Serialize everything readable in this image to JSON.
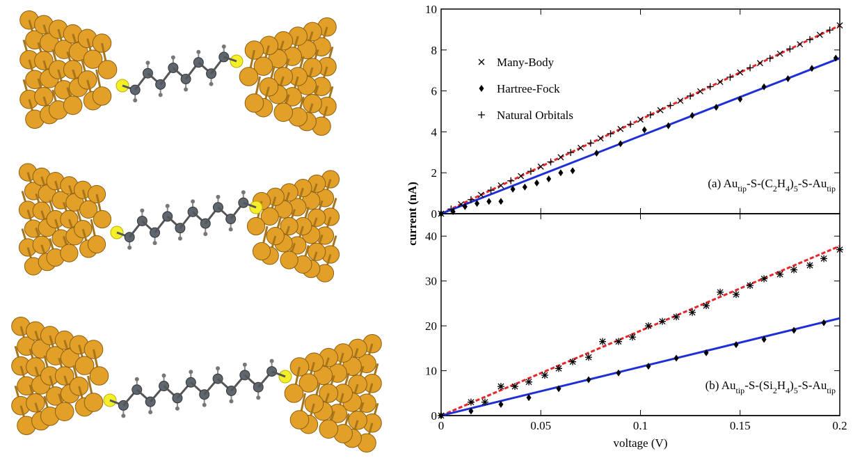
{
  "chart_data": [
    {
      "type": "scatter",
      "ylabel": "current (nA)",
      "xlim": [
        0,
        0.2
      ],
      "xticks": [
        0,
        0.05,
        0.1,
        0.15,
        0.2
      ],
      "ylim": [
        0,
        10
      ],
      "yticks": [
        0,
        2,
        4,
        6,
        8,
        10
      ],
      "legend": "upper left",
      "annotation": [
        {
          "text": "(a) Au",
          "sub": false
        },
        {
          "text": "tip",
          "sub": true
        },
        {
          "text": "-S-(C",
          "sub": false
        },
        {
          "text": "2",
          "sub": true
        },
        {
          "text": "H",
          "sub": false
        },
        {
          "text": "4",
          "sub": true
        },
        {
          "text": ")",
          "sub": false
        },
        {
          "text": "5",
          "sub": true
        },
        {
          "text": "-S-Au",
          "sub": false
        },
        {
          "text": "tip",
          "sub": true
        }
      ],
      "series": [
        {
          "name": "Many-Body",
          "marker": "x",
          "color": "#000000",
          "x": [
            0,
            0.01,
            0.02,
            0.03,
            0.04,
            0.05,
            0.06,
            0.07,
            0.08,
            0.09,
            0.1,
            0.11,
            0.12,
            0.13,
            0.14,
            0.15,
            0.16,
            0.17,
            0.18,
            0.19,
            0.2
          ],
          "values": [
            0,
            0.46,
            0.92,
            1.38,
            1.84,
            2.3,
            2.76,
            3.22,
            3.68,
            4.14,
            4.6,
            5.06,
            5.52,
            5.98,
            6.44,
            6.9,
            7.36,
            7.82,
            8.28,
            8.74,
            9.2
          ]
        },
        {
          "name": "Hartree-Fock",
          "marker": "diamond",
          "color": "#000000",
          "x": [
            0,
            0.006,
            0.012,
            0.018,
            0.024,
            0.03,
            0.036,
            0.042,
            0.048,
            0.054,
            0.06,
            0.066,
            0.078,
            0.09,
            0.102,
            0.114,
            0.126,
            0.138,
            0.15,
            0.162,
            0.174,
            0.186,
            0.198
          ],
          "values": [
            0,
            0.1,
            0.35,
            0.5,
            0.6,
            0.6,
            1.2,
            1.3,
            1.5,
            1.7,
            2.0,
            2.1,
            2.96,
            3.42,
            4.1,
            4.3,
            4.8,
            5.2,
            5.6,
            6.2,
            6.6,
            7.1,
            7.6
          ]
        },
        {
          "name": "Natural Orbitals",
          "marker": "plus",
          "color": "#000000",
          "x": [
            0.005,
            0.015,
            0.025,
            0.035,
            0.045,
            0.055,
            0.065,
            0.075,
            0.085,
            0.095,
            0.105,
            0.115,
            0.125,
            0.135,
            0.145,
            0.155,
            0.165,
            0.175,
            0.185,
            0.195
          ],
          "values": [
            0.23,
            0.69,
            1.15,
            1.61,
            2.07,
            2.53,
            2.99,
            3.45,
            3.91,
            4.37,
            4.83,
            5.29,
            5.75,
            6.21,
            6.67,
            7.13,
            7.59,
            8.05,
            8.51,
            8.97
          ]
        }
      ],
      "lines": [
        {
          "color": "#e8262a",
          "dash": true,
          "x": [
            0,
            0.2
          ],
          "values": [
            0,
            9.2
          ]
        },
        {
          "color": "#1f2fd6",
          "x": [
            0,
            0.2
          ],
          "values": [
            0,
            7.6
          ]
        }
      ]
    },
    {
      "type": "scatter",
      "xlabel": "voltage (V)",
      "xlim": [
        0,
        0.2
      ],
      "xticks": [
        0,
        0.05,
        0.1,
        0.15,
        0.2
      ],
      "ylim": [
        0,
        45
      ],
      "yticks": [
        0,
        10,
        20,
        30,
        40
      ],
      "annotation": [
        {
          "text": "(b) Au",
          "sub": false
        },
        {
          "text": "tip",
          "sub": true
        },
        {
          "text": "-S-(Si",
          "sub": false
        },
        {
          "text": "2",
          "sub": true
        },
        {
          "text": "H",
          "sub": false
        },
        {
          "text": "4",
          "sub": true
        },
        {
          "text": ")",
          "sub": false
        },
        {
          "text": "5",
          "sub": true
        },
        {
          "text": "-S-Au",
          "sub": false
        },
        {
          "text": "tip",
          "sub": true
        }
      ],
      "series": [
        {
          "marker": "x",
          "color": "#000000",
          "x": [
            0,
            0.015,
            0.022,
            0.03,
            0.037,
            0.044,
            0.052,
            0.059,
            0.066,
            0.074,
            0.081,
            0.089,
            0.096,
            0.104,
            0.111,
            0.118,
            0.126,
            0.133,
            0.14,
            0.148,
            0.155,
            0.162,
            0.17,
            0.177,
            0.185,
            0.192,
            0.2
          ],
          "values": [
            0,
            3,
            3,
            6.5,
            6.5,
            7.5,
            9,
            10.5,
            12,
            13,
            16.5,
            16.5,
            17.5,
            20,
            21,
            22,
            23,
            24.5,
            27.5,
            27,
            29,
            30.5,
            31.5,
            32.5,
            33.5,
            35,
            37
          ]
        },
        {
          "marker": "diamond",
          "color": "#000000",
          "x": [
            0,
            0.015,
            0.03,
            0.044,
            0.059,
            0.074,
            0.089,
            0.104,
            0.118,
            0.133,
            0.148,
            0.162,
            0.177,
            0.192
          ],
          "values": [
            0,
            1,
            2.5,
            4,
            6,
            8,
            9.5,
            11,
            12.8,
            14,
            15.8,
            17,
            19,
            20.7
          ]
        },
        {
          "marker": "plus",
          "color": "#000000",
          "x": [
            0,
            0.015,
            0.022,
            0.03,
            0.037,
            0.044,
            0.052,
            0.059,
            0.066,
            0.074,
            0.081,
            0.089,
            0.096,
            0.104,
            0.111,
            0.118,
            0.126,
            0.133,
            0.14,
            0.148,
            0.155,
            0.162,
            0.17,
            0.177,
            0.185,
            0.192,
            0.2
          ],
          "values": [
            0,
            3,
            3,
            6.5,
            6.5,
            7.5,
            9,
            10.5,
            12,
            13,
            16.5,
            16.5,
            17.5,
            20,
            21,
            22,
            23,
            24.5,
            27.5,
            27,
            29,
            30.5,
            31.5,
            32.5,
            33.5,
            35,
            37
          ]
        }
      ],
      "lines": [
        {
          "color": "#e8262a",
          "dash": true,
          "x": [
            0,
            0.2
          ],
          "values": [
            0,
            37.8
          ]
        },
        {
          "color": "#1f2fd6",
          "x": [
            0,
            0.2
          ],
          "values": [
            0,
            21.7
          ]
        }
      ]
    }
  ]
}
